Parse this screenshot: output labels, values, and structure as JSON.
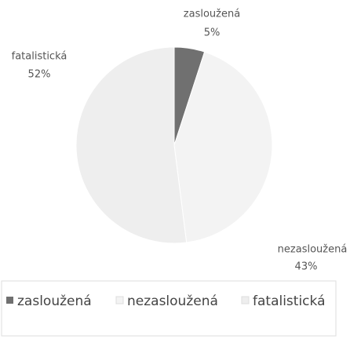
{
  "chart_data": {
    "type": "pie",
    "categories": [
      "zasloužená",
      "nezasloužená",
      "fatalistická"
    ],
    "values": [
      5,
      43,
      52
    ],
    "value_labels": [
      "5%",
      "43%",
      "52%"
    ],
    "colors": [
      "#707070",
      "#f3f3f3",
      "#eeeeee"
    ],
    "legend": "bottom"
  }
}
